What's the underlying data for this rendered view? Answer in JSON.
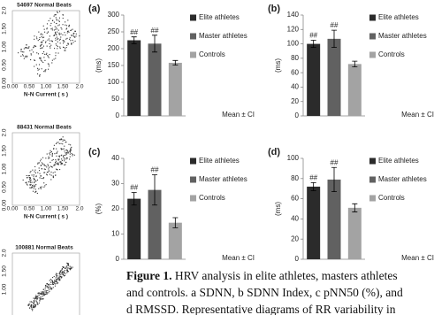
{
  "chart_data": [
    {
      "type": "bar",
      "panel": "(a)",
      "y_label": "(ms)",
      "note": "Mean ± CI",
      "categories": [
        "Elite athletes",
        "Master athletes",
        "Controls"
      ],
      "values": [
        225,
        215,
        158
      ],
      "errors": [
        10,
        25,
        7
      ],
      "annotations": [
        "##",
        "##",
        null
      ],
      "colors": [
        "#2b2b2b",
        "#616161",
        "#a3a3a3"
      ],
      "ylim": [
        0,
        300
      ],
      "yticks": [
        0,
        50,
        100,
        150,
        200,
        250,
        300
      ]
    },
    {
      "type": "bar",
      "panel": "(b)",
      "y_label": "(ms)",
      "note": "Mean ± CI",
      "categories": [
        "Elite athletes",
        "Master athletes",
        "Controls"
      ],
      "values": [
        100,
        107,
        72
      ],
      "errors": [
        5,
        12,
        4
      ],
      "annotations": [
        "##",
        "##",
        null
      ],
      "colors": [
        "#2b2b2b",
        "#616161",
        "#a3a3a3"
      ],
      "ylim": [
        0,
        140
      ],
      "yticks": [
        0,
        20,
        40,
        60,
        80,
        100,
        120,
        140
      ]
    },
    {
      "type": "bar",
      "panel": "(c)",
      "y_label": "(%)",
      "note": "Mean ± CI",
      "categories": [
        "Elite athletes",
        "Master athletes",
        "Controls"
      ],
      "values": [
        24,
        27.5,
        14.5
      ],
      "errors": [
        2.5,
        6,
        2
      ],
      "annotations": [
        "##",
        "##",
        null
      ],
      "colors": [
        "#2b2b2b",
        "#616161",
        "#a3a3a3"
      ],
      "ylim": [
        0,
        40
      ],
      "yticks": [
        0,
        10,
        20,
        30,
        40
      ]
    },
    {
      "type": "bar",
      "panel": "(d)",
      "y_label": "(ms)",
      "note": "Mean ± CI",
      "categories": [
        "Elite athletes",
        "Master athletes",
        "Controls"
      ],
      "values": [
        72,
        79,
        51
      ],
      "errors": [
        4,
        12,
        4
      ],
      "annotations": [
        "##",
        "##",
        null
      ],
      "colors": [
        "#2b2b2b",
        "#616161",
        "#a3a3a3"
      ],
      "ylim": [
        0,
        100
      ],
      "yticks": [
        0,
        20,
        40,
        60,
        80,
        100
      ]
    }
  ],
  "poincare": [
    {
      "title": "54697 Normal Beats",
      "x_label": "N-N Current ( s )",
      "xticks": [
        "0.00",
        "0.50",
        "1.00",
        "1.50",
        "2.0"
      ],
      "yticks": [
        "0.00",
        "0.50",
        "1.00",
        "1.50",
        "2.0"
      ]
    },
    {
      "title": "88431 Normal Beats",
      "x_label": "N-N Current ( s )",
      "xticks": [
        "0.00",
        "0.50",
        "1.00",
        "1.50",
        "2.0"
      ],
      "yticks": [
        "0.00",
        "0.50",
        "1.00",
        "1.50",
        "2.0"
      ]
    },
    {
      "title": "100881 Normal Beats",
      "yticks": [
        "1.00",
        "1.50",
        "2.0"
      ]
    }
  ],
  "caption": {
    "label": "Figure 1.",
    "lines": [
      " HRV analysis in elite athletes, masters athletes",
      "and controls. a SDNN, b SDNN Index, c pNN50 (%), and",
      "d RMSSD. Representative diagrams of RR variability in"
    ]
  }
}
